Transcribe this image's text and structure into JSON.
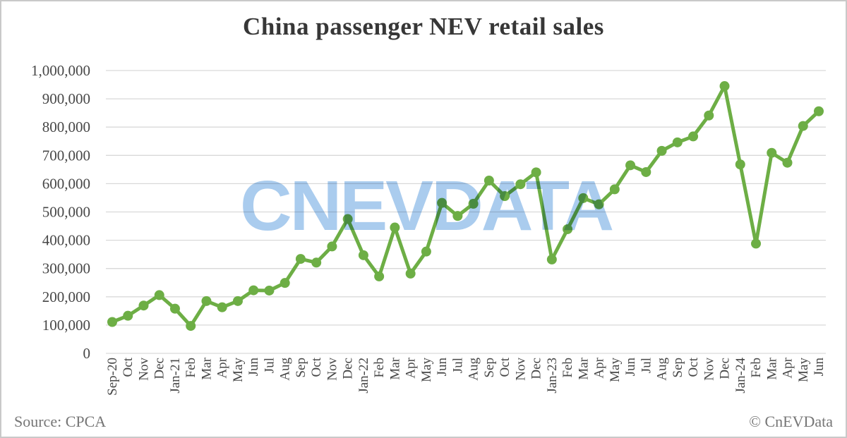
{
  "page": {
    "title": "China passenger NEV retail sales",
    "source_note": "Source: CPCA",
    "copyright": "© CnEVData",
    "watermark": "CNEVDATA"
  },
  "colors": {
    "line": "#6dae45",
    "marker": "#6dae45",
    "gridline": "#d9d9d9",
    "title_text": "#373737",
    "axis_text": "#474747",
    "footer_text": "#767676",
    "watermark_blue": "#aaccee",
    "border": "#c9c9c9",
    "background": "#ffffff"
  },
  "chart_data": {
    "type": "line",
    "title": "China passenger NEV retail sales",
    "xlabel": "",
    "ylabel": "",
    "legend": "none",
    "grid": "horizontal",
    "marker": "circle",
    "ylim": [
      0,
      1000000
    ],
    "y_tick_step": 100000,
    "y_ticks_top_to_bottom": [
      "1,000,000",
      "900,000",
      "800,000",
      "700,000",
      "600,000",
      "500,000",
      "400,000",
      "300,000",
      "200,000",
      "100,000",
      "0"
    ],
    "x": [
      "Sep-20",
      "Oct",
      "Nov",
      "Dec",
      "Jan-21",
      "Feb",
      "Mar",
      "Apr",
      "May",
      "Jun",
      "Jul",
      "Aug",
      "Sep",
      "Oct",
      "Nov",
      "Dec",
      "Jan-22",
      "Feb",
      "Mar",
      "Apr",
      "May",
      "Jun",
      "Jul",
      "Aug",
      "Sep",
      "Oct",
      "Nov",
      "Dec",
      "Jan-23",
      "Feb",
      "Mar",
      "Apr",
      "May",
      "Jun",
      "Jul",
      "Aug",
      "Sep",
      "Oct",
      "Nov",
      "Dec",
      "Jan-24",
      "Feb",
      "Mar",
      "Apr",
      "May",
      "Jun"
    ],
    "values": [
      111000,
      133000,
      169000,
      206000,
      158000,
      97000,
      185000,
      163000,
      185000,
      223000,
      222000,
      249000,
      334000,
      321000,
      378000,
      475000,
      347000,
      272000,
      445000,
      282000,
      360000,
      532000,
      486000,
      529000,
      611000,
      556000,
      598000,
      640000,
      332000,
      439000,
      549000,
      527000,
      580000,
      665000,
      641000,
      716000,
      746000,
      767000,
      841000,
      945000,
      668000,
      388000,
      709000,
      674000,
      804000,
      856000
    ]
  }
}
